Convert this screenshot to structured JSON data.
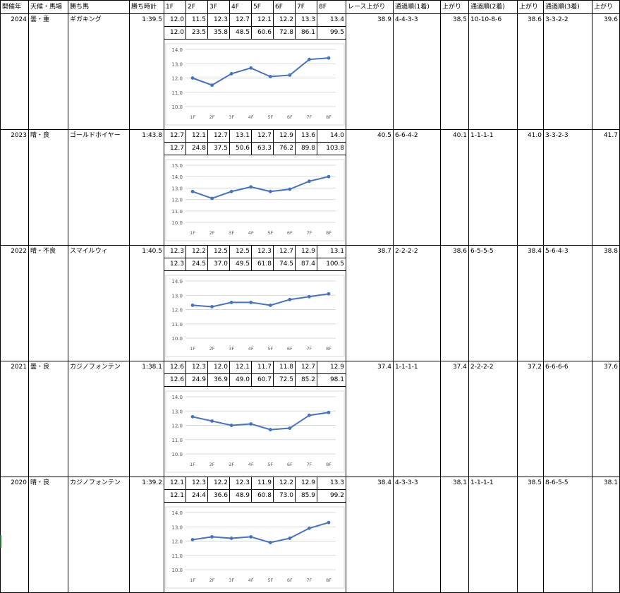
{
  "headers": [
    "開催年",
    "天候・馬場",
    "勝ち馬",
    "勝ち時計",
    "1F",
    "2F",
    "3F",
    "4F",
    "5F",
    "6F",
    "7F",
    "8F",
    "レース上がり",
    "通過順(1着)",
    "上がり",
    "通過順(2着)",
    "上がり",
    "通過順(3着)",
    "上がり"
  ],
  "races": [
    {
      "year": "2024",
      "weather": "曇・重",
      "winner": "ギガキング",
      "time": "1:39.5",
      "laps": [
        "12.0",
        "11.5",
        "12.3",
        "12.7",
        "12.1",
        "12.2",
        "13.3",
        "13.4"
      ],
      "cum": [
        "12.0",
        "23.5",
        "35.8",
        "48.5",
        "60.6",
        "72.8",
        "86.1",
        "99.5"
      ],
      "race_last": "38.9",
      "pass1": "4-4-3-3",
      "last1": "38.5",
      "pass2": "10-10-8-6",
      "last2": "38.6",
      "pass3": "3-3-2-2",
      "last3": "39.6"
    },
    {
      "year": "2023",
      "weather": "晴・良",
      "winner": "ゴールドホイヤー",
      "time": "1:43.8",
      "laps": [
        "12.7",
        "12.1",
        "12.7",
        "13.1",
        "12.7",
        "12.9",
        "13.6",
        "14.0"
      ],
      "cum": [
        "12.7",
        "24.8",
        "37.5",
        "50.6",
        "63.3",
        "76.2",
        "89.8",
        "103.8"
      ],
      "race_last": "40.5",
      "pass1": "6-6-4-2",
      "last1": "40.1",
      "pass2": "1-1-1-1",
      "last2": "41.0",
      "pass3": "3-3-2-3",
      "last3": "41.7"
    },
    {
      "year": "2022",
      "weather": "晴・不良",
      "winner": "スマイルウィ",
      "time": "1:40.5",
      "laps": [
        "12.3",
        "12.2",
        "12.5",
        "12.5",
        "12.3",
        "12.7",
        "12.9",
        "13.1"
      ],
      "cum": [
        "12.3",
        "24.5",
        "37.0",
        "49.5",
        "61.8",
        "74.5",
        "87.4",
        "100.5"
      ],
      "race_last": "38.7",
      "pass1": "2-2-2-2",
      "last1": "38.6",
      "pass2": "6-5-5-5",
      "last2": "38.4",
      "pass3": "5-6-4-3",
      "last3": "38.8"
    },
    {
      "year": "2021",
      "weather": "曇・良",
      "winner": "カジノフォンテン",
      "time": "1:38.1",
      "laps": [
        "12.6",
        "12.3",
        "12.0",
        "12.1",
        "11.7",
        "11.8",
        "12.7",
        "12.9"
      ],
      "cum": [
        "12.6",
        "24.9",
        "36.9",
        "49.0",
        "60.7",
        "72.5",
        "85.2",
        "98.1"
      ],
      "race_last": "37.4",
      "pass1": "1-1-1-1",
      "last1": "37.4",
      "pass2": "2-2-2-2",
      "last2": "37.2",
      "pass3": "6-6-6-6",
      "last3": "37.6"
    },
    {
      "year": "2020",
      "weather": "晴・良",
      "winner": "カジノフォンテン",
      "time": "1:39.2",
      "laps": [
        "12.1",
        "12.3",
        "12.2",
        "12.3",
        "11.9",
        "12.2",
        "12.9",
        "13.3"
      ],
      "cum": [
        "12.1",
        "24.4",
        "36.6",
        "48.9",
        "60.8",
        "73.0",
        "85.9",
        "99.2"
      ],
      "race_last": "38.4",
      "pass1": "4-3-3-3",
      "last1": "38.1",
      "pass2": "1-1-1-1",
      "last2": "38.5",
      "pass3": "8-6-5-5",
      "last3": "38.1"
    }
  ],
  "chart_data": [
    {
      "type": "line",
      "categories": [
        "1F",
        "2F",
        "3F",
        "4F",
        "5F",
        "6F",
        "7F",
        "8F"
      ],
      "values": [
        12.0,
        11.5,
        12.3,
        12.7,
        12.1,
        12.2,
        13.3,
        13.4
      ],
      "ylim": [
        10,
        14
      ],
      "yticks": [
        "10.0",
        "11.0",
        "12.0",
        "13.0",
        "14.0"
      ],
      "grid": true,
      "color": "#4472c4"
    },
    {
      "type": "line",
      "categories": [
        "1F",
        "2F",
        "3F",
        "4F",
        "5F",
        "6F",
        "7F",
        "8F"
      ],
      "values": [
        12.7,
        12.1,
        12.7,
        13.1,
        12.7,
        12.9,
        13.6,
        14.0
      ],
      "ylim": [
        10,
        15
      ],
      "yticks": [
        "10.0",
        "11.0",
        "12.0",
        "13.0",
        "14.0",
        "15.0"
      ],
      "grid": true,
      "color": "#4472c4"
    },
    {
      "type": "line",
      "categories": [
        "1F",
        "2F",
        "3F",
        "4F",
        "5F",
        "6F",
        "7F",
        "8F"
      ],
      "values": [
        12.3,
        12.2,
        12.5,
        12.5,
        12.3,
        12.7,
        12.9,
        13.1
      ],
      "ylim": [
        10,
        14
      ],
      "yticks": [
        "10.0",
        "11.0",
        "12.0",
        "13.0",
        "14.0"
      ],
      "grid": true,
      "color": "#4472c4"
    },
    {
      "type": "line",
      "categories": [
        "1F",
        "2F",
        "3F",
        "4F",
        "5F",
        "6F",
        "7F",
        "8F"
      ],
      "values": [
        12.6,
        12.3,
        12.0,
        12.1,
        11.7,
        11.8,
        12.7,
        12.9
      ],
      "ylim": [
        10,
        14
      ],
      "yticks": [
        "10.0",
        "11.0",
        "12.0",
        "13.0",
        "14.0"
      ],
      "grid": true,
      "color": "#4472c4"
    },
    {
      "type": "line",
      "categories": [
        "1F",
        "2F",
        "3F",
        "4F",
        "5F",
        "6F",
        "7F",
        "8F"
      ],
      "values": [
        12.1,
        12.3,
        12.2,
        12.3,
        11.9,
        12.2,
        12.9,
        13.3
      ],
      "ylim": [
        10,
        14
      ],
      "yticks": [
        "10.0",
        "11.0",
        "12.0",
        "13.0",
        "14.0"
      ],
      "grid": true,
      "color": "#4472c4"
    }
  ]
}
